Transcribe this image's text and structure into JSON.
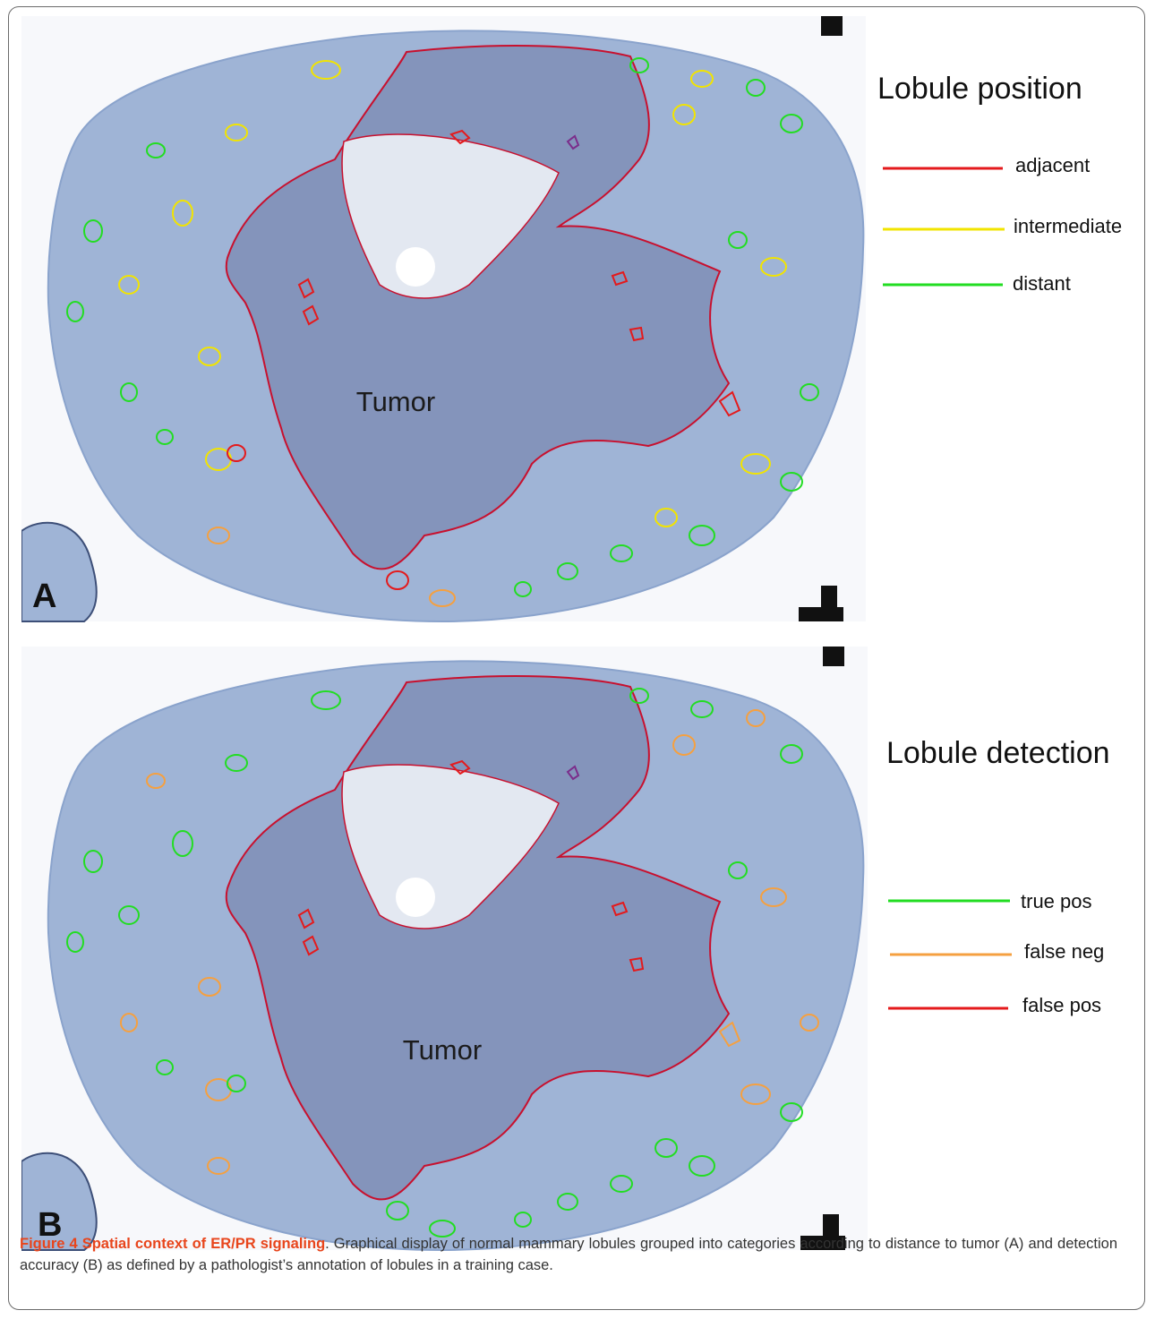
{
  "panels": [
    {
      "id": "A",
      "letter": "A",
      "tumor_label": "Tumor",
      "legend_title": "Lobule position",
      "legend": [
        {
          "label": "adjacent",
          "color": "#e41a1c"
        },
        {
          "label": "intermediate",
          "color": "#f2e400"
        },
        {
          "label": "distant",
          "color": "#22dd22"
        }
      ]
    },
    {
      "id": "B",
      "letter": "B",
      "tumor_label": "Tumor",
      "legend_title": "Lobule detection",
      "legend": [
        {
          "label": "true pos",
          "color": "#22dd22"
        },
        {
          "label": "false neg",
          "color": "#f5a040"
        },
        {
          "label": "false pos",
          "color": "#e41a1c"
        }
      ]
    }
  ],
  "caption": {
    "title": "Figure 4 Spatial context of ER/PR signaling",
    "body": ". Graphical display of normal mammary lobules grouped into categories according to distance to tumor (A) and detection accuracy (B) as defined by a pathologist’s annotation of lobules in a training case."
  },
  "colors": {
    "tissue": "#9fb4d6",
    "tumor_tissue": "#8494bb",
    "tumor_outline": "#c8102e",
    "scale_bar": "#111111",
    "caption_title": "#e8451c"
  }
}
